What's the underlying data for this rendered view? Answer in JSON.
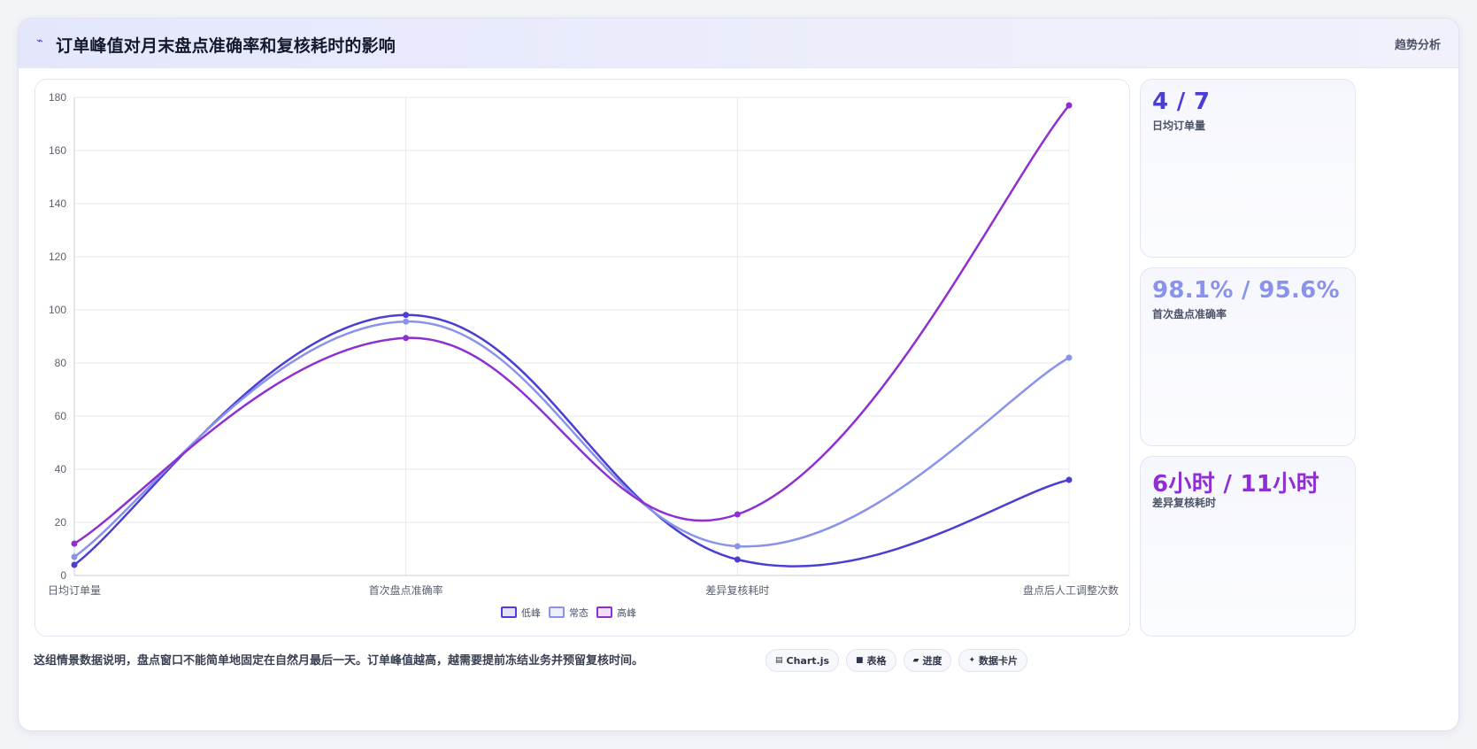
{
  "header": {
    "title": "订单峰值对月末盘点准确率和复核耗时的影响",
    "tag": "趋势分析"
  },
  "stats": [
    {
      "value": "4 / 7",
      "label": "日均订单量",
      "color": "#4a3fd4"
    },
    {
      "value": "98.1% / 95.6%",
      "label": "首次盘点准确率",
      "color": "#8a93ea"
    },
    {
      "value": "6小时 / 11小时",
      "label": "差异复核耗时",
      "color": "#8f2fd1"
    }
  ],
  "footer": {
    "note": "这组情景数据说明，盘点窗口不能简单地固定在自然月最后一天。订单峰值越高，越需要提前冻结业务并预留复核时间。",
    "tags": [
      {
        "icon": "chart-icon",
        "glyph": "▤",
        "label": "Chart.js"
      },
      {
        "icon": "table-icon",
        "glyph": "■",
        "label": "表格"
      },
      {
        "icon": "progress-icon",
        "glyph": "▰",
        "label": "进度"
      },
      {
        "icon": "card-icon",
        "glyph": "✦",
        "label": "数据卡片"
      }
    ]
  },
  "chart_data": {
    "type": "line",
    "categories": [
      "日均订单量",
      "首次盘点准确率",
      "差异复核耗时",
      "盘点后人工调整次数"
    ],
    "ylim": [
      0,
      180
    ],
    "yticks": [
      0,
      20,
      40,
      60,
      80,
      100,
      120,
      140,
      160,
      180
    ],
    "grid": true,
    "legend_position": "bottom",
    "series": [
      {
        "name": "低峰",
        "values": [
          4,
          98.1,
          6,
          36
        ],
        "color": "#4a3fd4"
      },
      {
        "name": "常态",
        "values": [
          7,
          95.6,
          11,
          82
        ],
        "color": "#8a93ea"
      },
      {
        "name": "高峰",
        "values": [
          12,
          89.4,
          23,
          177
        ],
        "color": "#8f2fd1"
      }
    ]
  }
}
